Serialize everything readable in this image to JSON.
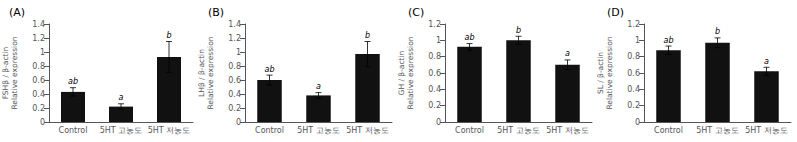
{
  "chart_data": [
    {
      "type": "bar",
      "title": "(A)",
      "ylabel": "FSHβ / β-actin\nRelative expression",
      "categories": [
        "Control",
        "5HT 고농도",
        "5HT 저농도"
      ],
      "values": [
        0.43,
        0.22,
        0.93
      ],
      "errors": [
        0.06,
        0.04,
        0.22
      ],
      "annotations": [
        "ab",
        "a",
        "b"
      ],
      "color": "#111111",
      "ylim": [
        0,
        1.4
      ],
      "yticks": [
        0,
        0.2,
        0.4,
        0.6,
        0.8,
        1,
        1.2,
        1.4
      ],
      "grid": false
    },
    {
      "type": "bar",
      "title": "(B)",
      "ylabel": "LHβ / β-actin\nRelative expression",
      "categories": [
        "Control",
        "5HT 고농도",
        "5HT 저농도"
      ],
      "values": [
        0.6,
        0.38,
        0.97
      ],
      "errors": [
        0.07,
        0.04,
        0.18
      ],
      "annotations": [
        "ab",
        "a",
        "b"
      ],
      "color": "#111111",
      "ylim": [
        0,
        1.4
      ],
      "yticks": [
        0,
        0.2,
        0.4,
        0.6,
        0.8,
        1,
        1.2,
        1.4
      ],
      "grid": false
    },
    {
      "type": "bar",
      "title": "(C)",
      "ylabel": "GH / β-actin\nRelative expression",
      "categories": [
        "Control",
        "5HT 고농도",
        "5HT 저농도"
      ],
      "values": [
        0.92,
        1,
        0.7
      ],
      "errors": [
        0.04,
        0.05,
        0.06
      ],
      "annotations": [
        "ab",
        "b",
        "a"
      ],
      "color": "#111111",
      "ylim": [
        0,
        1.2
      ],
      "yticks": [
        0,
        0.2,
        0.4,
        0.6,
        0.8,
        1,
        1.2
      ],
      "grid": false
    },
    {
      "type": "bar",
      "title": "(D)",
      "ylabel": "SL / β-actin\nRelative expression",
      "categories": [
        "Control",
        "5HT 고농도",
        "5HT 저농도"
      ],
      "values": [
        0.88,
        0.97,
        0.62
      ],
      "errors": [
        0.05,
        0.06,
        0.05
      ],
      "annotations": [
        "ab",
        "b",
        "a"
      ],
      "color": "#111111",
      "ylim": [
        0,
        1.2
      ],
      "yticks": [
        0,
        0.2,
        0.4,
        0.6,
        0.8,
        1,
        1.2
      ],
      "grid": false
    }
  ]
}
